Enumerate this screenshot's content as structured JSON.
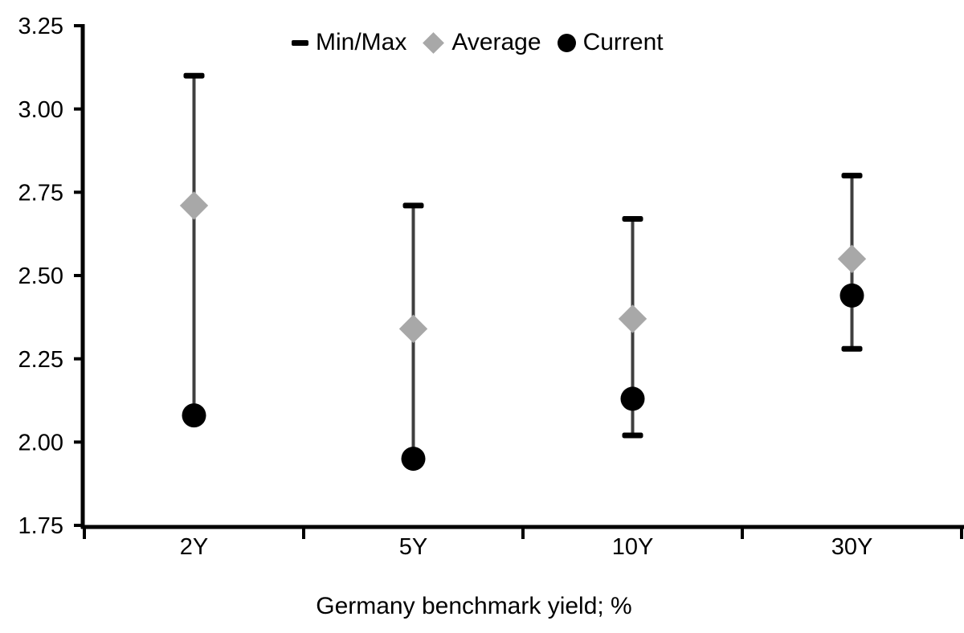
{
  "chart_data": {
    "type": "scatter",
    "title": "",
    "xlabel": "Germany benchmark yield; %",
    "ylabel": "",
    "categories": [
      "2Y",
      "5Y",
      "10Y",
      "30Y"
    ],
    "ylim": [
      1.75,
      3.25
    ],
    "y_tick_step": 0.25,
    "y_tick_labels": [
      "1.75",
      "2.00",
      "2.25",
      "2.50",
      "2.75",
      "3.00",
      "3.25"
    ],
    "grid": false,
    "legend_position": "top-center",
    "series": [
      {
        "name": "Min/Max",
        "marker": "range-cap",
        "min": [
          2.08,
          1.95,
          2.02,
          2.28
        ],
        "max": [
          3.1,
          2.71,
          2.67,
          2.8
        ]
      },
      {
        "name": "Average",
        "marker": "diamond",
        "values": [
          2.71,
          2.34,
          2.37,
          2.55
        ]
      },
      {
        "name": "Current",
        "marker": "circle",
        "values": [
          2.08,
          1.95,
          2.13,
          2.44
        ]
      }
    ],
    "colors": {
      "range_line": "#3f3f3f",
      "range_cap": "#000000",
      "average": "#a8a8a8",
      "current": "#000000",
      "axis": "#000000",
      "text": "#000000",
      "background": "#ffffff"
    }
  }
}
